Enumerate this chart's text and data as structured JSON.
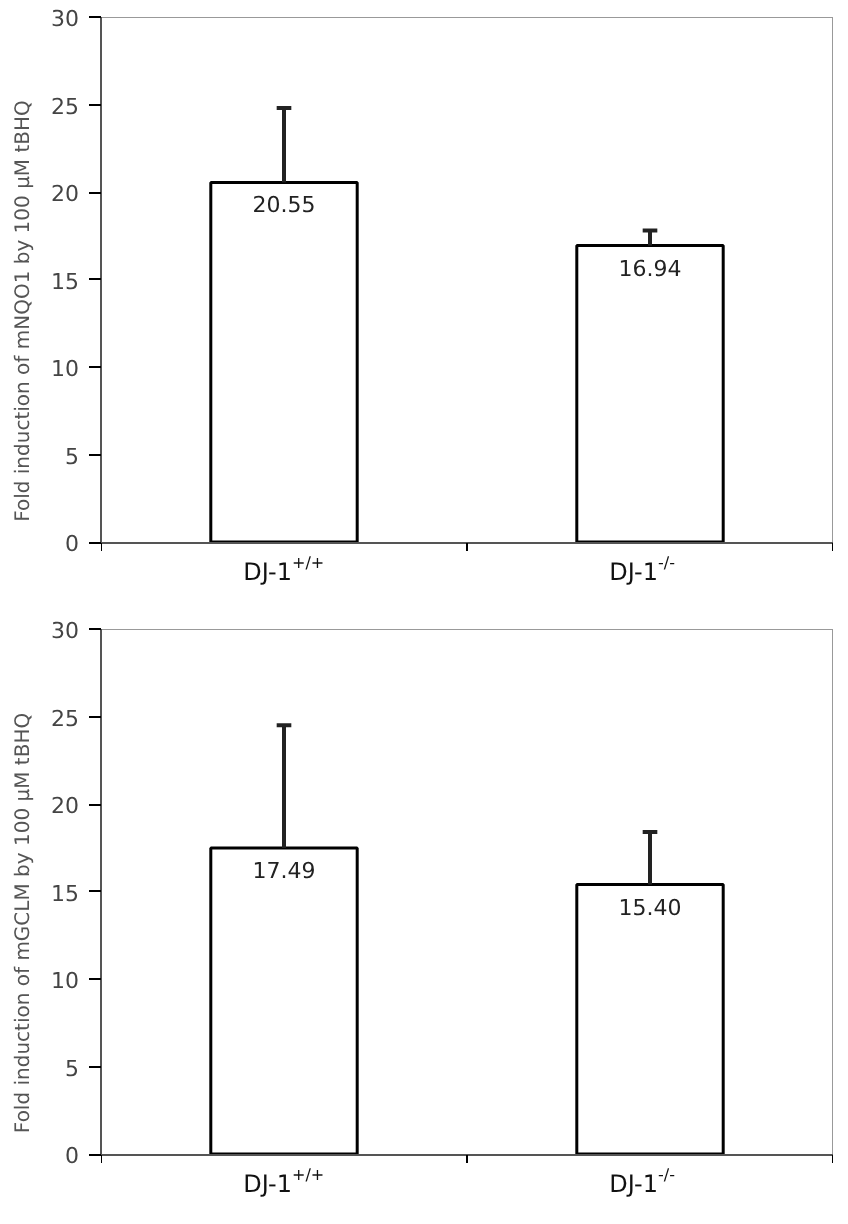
{
  "chart_data": [
    {
      "type": "bar",
      "ylabel": "Fold induction of mNQO1 by 100 μM tBHQ",
      "categories": [
        "DJ-1$^{+/+}$",
        "DJ-1$^{-/-}$"
      ],
      "values": [
        20.55,
        16.94
      ],
      "value_labels": [
        "20.55",
        "16.94"
      ],
      "errors": [
        [
          20.55,
          24.8
        ],
        [
          16.94,
          17.8
        ]
      ],
      "color": "#ffffff",
      "ylim": [
        0,
        30
      ],
      "yticks": [
        0,
        5,
        10,
        15,
        20,
        25,
        30
      ],
      "grid": false
    },
    {
      "type": "bar",
      "ylabel": "Fold induction of mGCLM by 100 μM tBHQ",
      "categories": [
        "DJ-1$^{+/+}$",
        "DJ-1$^{-/-}$"
      ],
      "values": [
        17.49,
        15.4
      ],
      "value_labels": [
        "17.49",
        "15.40"
      ],
      "errors": [
        [
          17.49,
          24.5
        ],
        [
          15.4,
          18.4
        ]
      ],
      "color": "#ffffff",
      "ylim": [
        0,
        30
      ],
      "yticks": [
        0,
        5,
        10,
        15,
        20,
        25,
        30
      ],
      "grid": false
    }
  ]
}
